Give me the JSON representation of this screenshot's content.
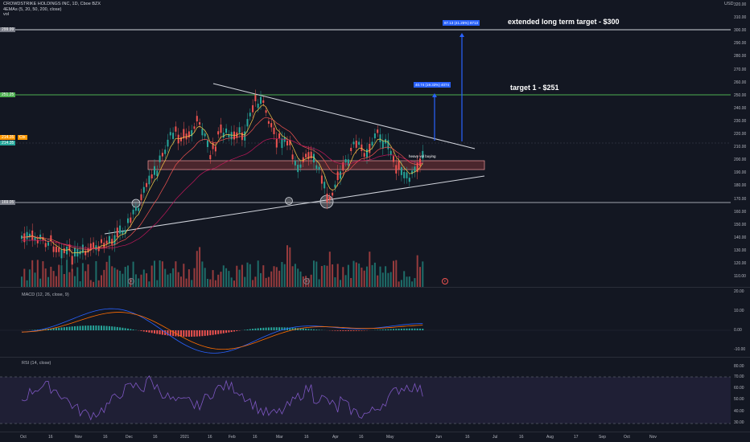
{
  "header": {
    "symbol_line": "CROWDSTRIKE HOLDINGS INC, 1D, Cboe BZX",
    "ema_line": "4EMAs (5, 20, 50, 200, close)",
    "vol_line": "vol",
    "currency": "USD"
  },
  "annotations": {
    "extended_target": "extended long term target - $300",
    "target1": "target 1 - $251",
    "buying_note": "heavy vol buying",
    "box_extended": "87.13 (41.25%) 8713",
    "box_target1": "40.74 (19.33%) 4074"
  },
  "price_axis": {
    "labels": [
      "320.00",
      "310.00",
      "300.00",
      "290.00",
      "280.00",
      "270.00",
      "260.00",
      "250.00",
      "240.00",
      "230.00",
      "220.00",
      "210.00",
      "200.00",
      "190.00",
      "180.00",
      "170.00",
      "160.00",
      "150.00",
      "140.00",
      "130.00",
      "120.00",
      "110.00"
    ],
    "tag_target300": "299.99",
    "tag_target251": "251.25",
    "tag_current": "214.35",
    "tag_current2": "214.35",
    "tag_support": "169.05",
    "tag_sym": "Ctx"
  },
  "macd": {
    "label": "MACD (12, 26, close, 9)",
    "axis": [
      "20.00",
      "10.00",
      "0.00",
      "-10.00"
    ]
  },
  "rsi": {
    "label": "RSI (14, close)",
    "axis": [
      "80.00",
      "70.00",
      "60.00",
      "50.00",
      "40.00",
      "30.00"
    ]
  },
  "time_axis": [
    "Oct",
    "16",
    "Nov",
    "16",
    "Dec",
    "16",
    "2021",
    "16",
    "Feb",
    "16",
    "Mar",
    "16",
    "Apr",
    "16",
    "May",
    "Jun",
    "16",
    "Jul",
    "16",
    "Aug",
    "17",
    "Sep",
    "Oct",
    "Nov"
  ],
  "earnings_marker": "E",
  "colors": {
    "bg": "#131722",
    "up": "#26a69a",
    "down": "#ef5350",
    "target_green": "#4caf50",
    "blue": "#2962ff",
    "rsi_purple": "#7e57c2"
  }
}
